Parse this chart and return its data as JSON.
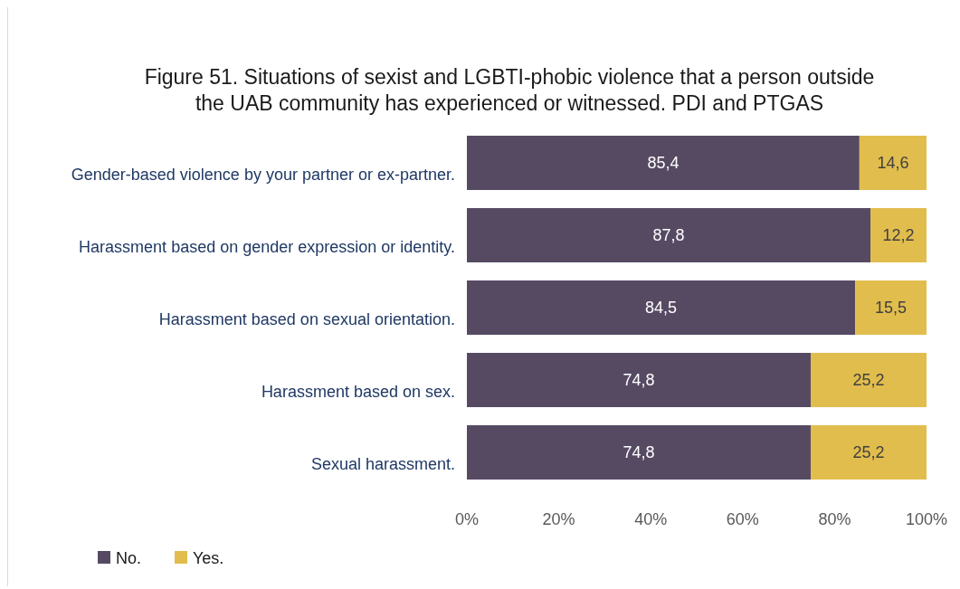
{
  "chart_data": {
    "type": "bar",
    "orientation": "horizontal",
    "stacked": true,
    "title": "Figure 51. Situations of sexist and LGBTI-phobic violence that a person outside the UAB community has experienced or witnessed. PDI and PTGAS",
    "categories": [
      "Gender-based violence by your partner or ex-partner.",
      "Harassment based on gender expression or identity.",
      "Harassment based on sexual orientation.",
      "Harassment based on sex.",
      "Sexual harassment."
    ],
    "series": [
      {
        "name": "No.",
        "color": "#564a63",
        "values": [
          85.4,
          87.8,
          84.5,
          74.8,
          74.8
        ],
        "value_labels": [
          "85,4",
          "87,8",
          "84,5",
          "74,8",
          "74,8"
        ]
      },
      {
        "name": "Yes.",
        "color": "#e1bd4d",
        "values": [
          14.6,
          12.2,
          15.5,
          25.2,
          25.2
        ],
        "value_labels": [
          "14,6",
          "12,2",
          "15,5",
          "25,2",
          "25,2"
        ]
      }
    ],
    "xlim": [
      0,
      100
    ],
    "xticks": [
      {
        "value": 0,
        "label": "0%"
      },
      {
        "value": 20,
        "label": "20%"
      },
      {
        "value": 40,
        "label": "40%"
      },
      {
        "value": 60,
        "label": "60%"
      },
      {
        "value": 80,
        "label": "80%"
      },
      {
        "value": 100,
        "label": "100%"
      }
    ],
    "grid": false,
    "legend": "bottom left"
  }
}
